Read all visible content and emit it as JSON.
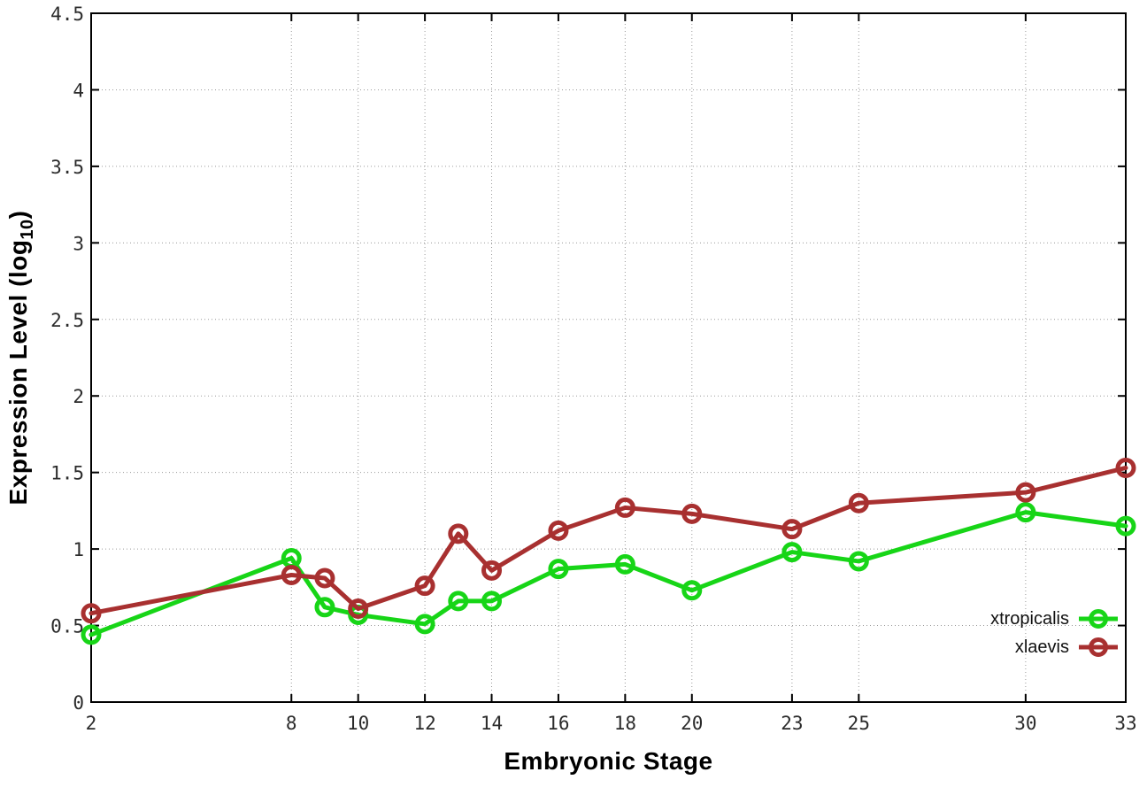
{
  "figure": {
    "xlabel": "Embryonic Stage",
    "ylabel_prefix": "Expression Level (log",
    "ylabel_sub": "10",
    "ylabel_suffix": ")"
  },
  "chart_data": {
    "type": "line",
    "x": [
      2,
      8,
      9,
      10,
      12,
      13,
      14,
      16,
      18,
      20,
      23,
      25,
      30,
      33
    ],
    "series": [
      {
        "name": "xtropicalis",
        "color": "#17d517",
        "marker": "open-circle",
        "values": [
          0.44,
          0.94,
          0.62,
          0.57,
          0.51,
          0.66,
          0.66,
          0.87,
          0.9,
          0.73,
          0.98,
          0.92,
          1.24,
          1.15
        ]
      },
      {
        "name": "xlaevis",
        "color": "#a83030",
        "marker": "open-circle",
        "values": [
          0.58,
          0.83,
          0.81,
          0.61,
          0.76,
          1.1,
          0.86,
          1.12,
          1.27,
          1.23,
          1.13,
          1.3,
          1.37,
          1.53
        ]
      }
    ],
    "title": "",
    "xlabel": "Embryonic Stage",
    "ylabel": "Expression Level (log10)",
    "xlim": [
      2,
      33
    ],
    "ylim": [
      0,
      4.5
    ],
    "xticks": [
      2,
      8,
      10,
      12,
      14,
      16,
      18,
      20,
      23,
      25,
      30,
      33
    ],
    "ytick_step": 0.5,
    "grid": "dotted",
    "grid_color": "#9a9a9a",
    "axis_color": "#000000",
    "tick_label_color": "#2b2b2b",
    "legend_position": "bottom-right"
  }
}
